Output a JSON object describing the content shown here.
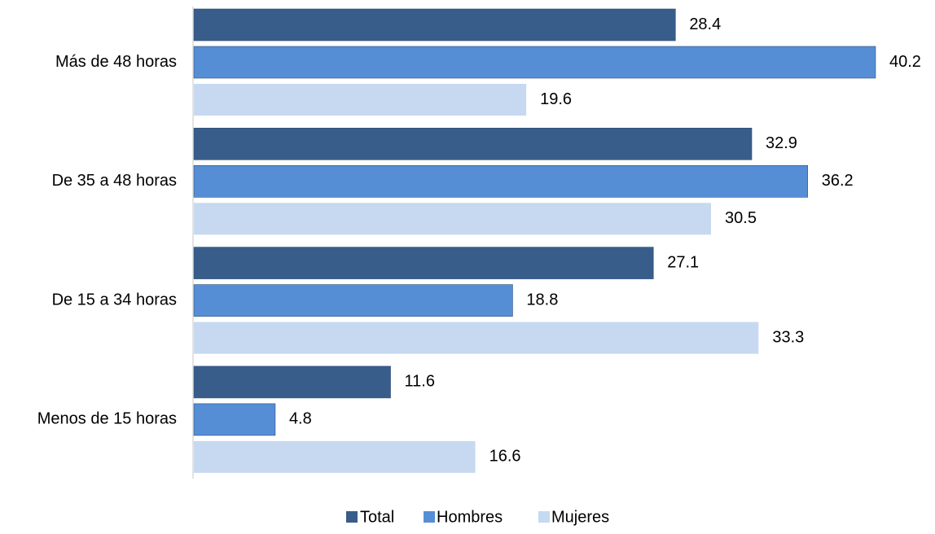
{
  "chart_data": {
    "type": "bar",
    "orientation": "horizontal",
    "categories": [
      "Más de 48 horas",
      "De 35 a 48 horas",
      "De 15 a 34 horas",
      "Menos de 15 horas"
    ],
    "series": [
      {
        "name": "Total",
        "values": [
          28.4,
          32.9,
          27.1,
          11.6
        ],
        "color": "#385d8a"
      },
      {
        "name": "Hombres",
        "values": [
          40.2,
          36.2,
          18.8,
          4.8
        ],
        "color": "#558ed5"
      },
      {
        "name": "Mujeres",
        "values": [
          19.6,
          30.5,
          33.3,
          16.6
        ],
        "color": "#c6d9f1"
      }
    ],
    "title": "",
    "xlabel": "",
    "ylabel": "",
    "xlim": [
      0,
      40.2
    ],
    "grid": false,
    "legend_position": "bottom",
    "data_labels": true
  }
}
